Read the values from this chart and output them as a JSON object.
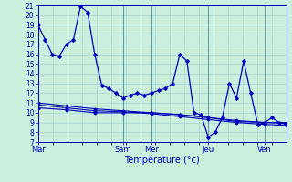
{
  "title": "Température (°c)",
  "background_color": "#cceedd",
  "grid_color": "#99cccc",
  "line_color": "#0000bb",
  "dark_vline_color": "#5599aa",
  "ylim": [
    7,
    21
  ],
  "yticks": [
    7,
    8,
    9,
    10,
    11,
    12,
    13,
    14,
    15,
    16,
    17,
    18,
    19,
    20,
    21
  ],
  "x_tick_labels": [
    "Mar",
    "Sam",
    "Mer",
    "Jeu",
    "Ven"
  ],
  "x_tick_positions": [
    0,
    6,
    8,
    12,
    16
  ],
  "num_x_gridlines": 17,
  "dark_vlines": [
    0,
    6,
    8,
    12,
    16
  ],
  "lines": [
    {
      "x": [
        0,
        0.5,
        1,
        1.5,
        2,
        2.5,
        3,
        3.5,
        4,
        4.5,
        5,
        5.5,
        6,
        6.5,
        7,
        7.5,
        8,
        8.5,
        9,
        9.5,
        10,
        10.5,
        11,
        11.5,
        12,
        12.5,
        13,
        13.5,
        14,
        14.5,
        15,
        15.5,
        16,
        16.5,
        17,
        17.5
      ],
      "y": [
        19,
        17.5,
        16,
        15.8,
        17,
        17.5,
        20.9,
        20.3,
        16,
        12.8,
        12.5,
        12.0,
        11.5,
        11.8,
        12.0,
        11.8,
        12.0,
        12.3,
        12.5,
        13.0,
        16.0,
        15.3,
        10.0,
        9.8,
        7.5,
        8.0,
        9.5,
        13.0,
        11.5,
        15.3,
        12.0,
        8.8,
        9.0,
        9.5,
        9.0,
        8.8
      ]
    },
    {
      "x": [
        0,
        2,
        4,
        6,
        8,
        10,
        12,
        14,
        16,
        17.5
      ],
      "y": [
        10.5,
        10.3,
        10.0,
        10.0,
        10.0,
        9.8,
        9.5,
        9.1,
        9.0,
        9.0
      ]
    },
    {
      "x": [
        0,
        2,
        4,
        6,
        8,
        10,
        12,
        14,
        16,
        17.5
      ],
      "y": [
        10.8,
        10.5,
        10.2,
        10.1,
        9.9,
        9.6,
        9.3,
        9.0,
        8.8,
        8.7
      ]
    },
    {
      "x": [
        0,
        2,
        4,
        6,
        8,
        10,
        12,
        14,
        16,
        17.5
      ],
      "y": [
        11.0,
        10.7,
        10.4,
        10.2,
        10.0,
        9.8,
        9.5,
        9.2,
        9.0,
        8.9
      ]
    }
  ],
  "xlim": [
    0,
    17.5
  ]
}
